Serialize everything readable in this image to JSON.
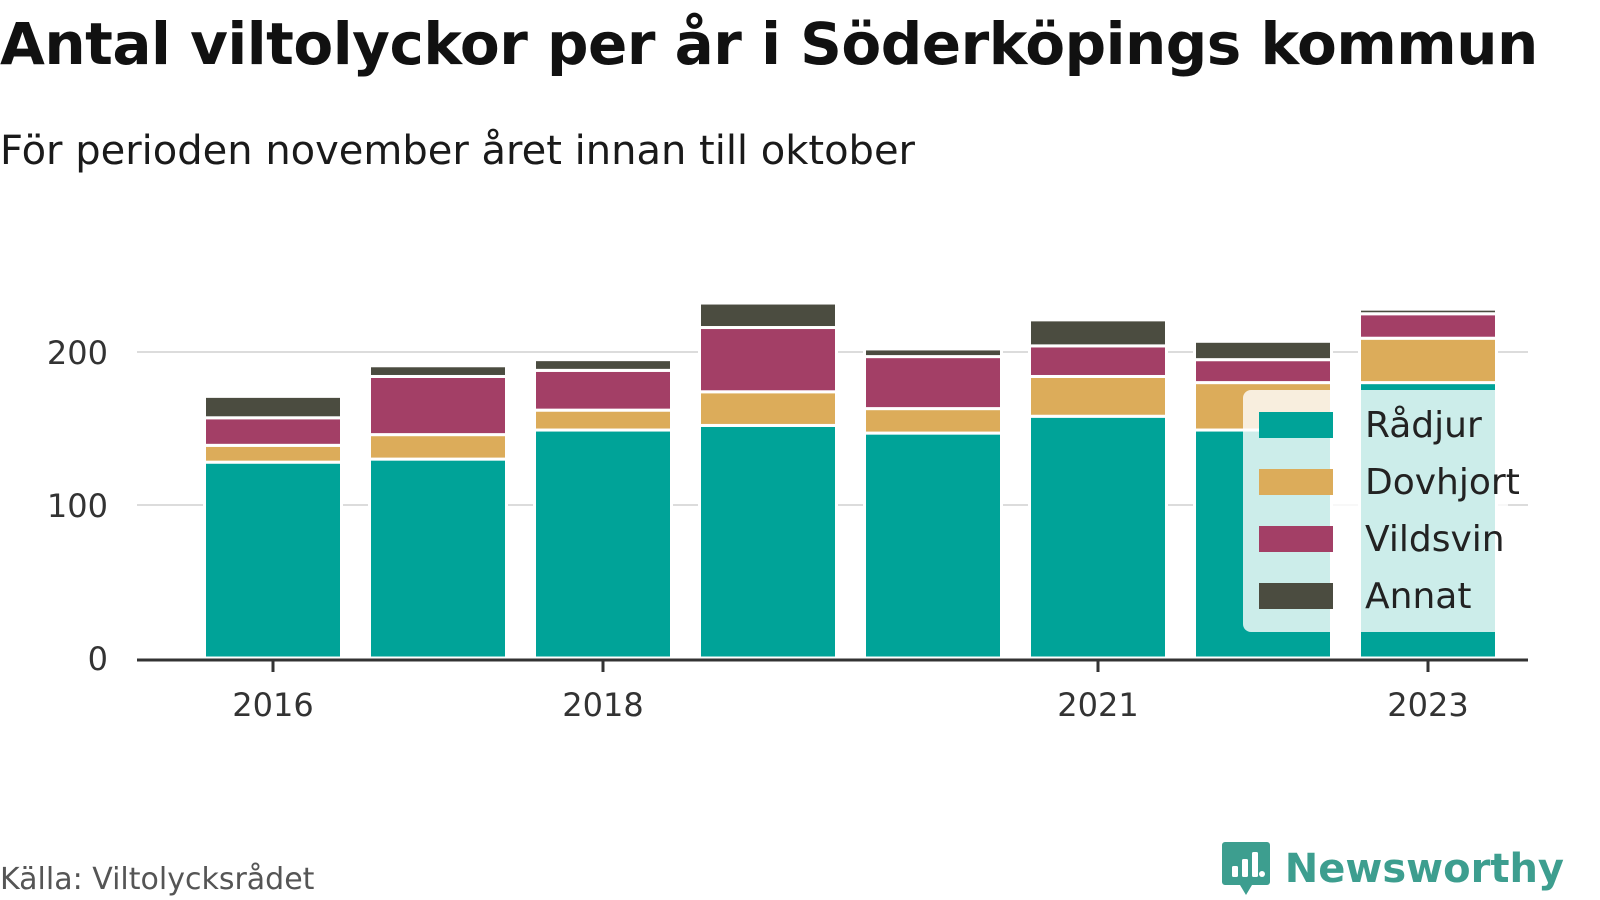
{
  "chart_data": {
    "type": "bar",
    "stacked": true,
    "title": "Antal viltolyckor per år i Söderköpings kommun",
    "subtitle": "För perioden november året innan till oktober",
    "categories": [
      "2016",
      "2017",
      "2018",
      "2019",
      "2020",
      "2021",
      "2022",
      "2023"
    ],
    "tick_labels": [
      "2016",
      "",
      "2018",
      "",
      "",
      "2021",
      "",
      "2023"
    ],
    "y_ticks": [
      "0",
      "100",
      "200"
    ],
    "ylim": [
      0,
      250
    ],
    "grid": true,
    "legend_position": "right",
    "series": [
      {
        "name": "Rådjur",
        "color": "#00a398",
        "values": [
          128,
          130,
          149,
          152,
          147,
          158,
          149,
          180
        ]
      },
      {
        "name": "Dovhjort",
        "color": "#dcac5a",
        "values": [
          11,
          16,
          13,
          22,
          16,
          26,
          31,
          29
        ]
      },
      {
        "name": "Vildsvin",
        "color": "#a33f66",
        "values": [
          18,
          38,
          26,
          42,
          34,
          20,
          15,
          16
        ]
      },
      {
        "name": "Annat",
        "color": "#4b4c40",
        "values": [
          14,
          7,
          7,
          16,
          5,
          17,
          12,
          3
        ]
      }
    ]
  },
  "footer": {
    "source": "Källa: Viltolycksrådet",
    "brand": "Newsworthy",
    "brand_color": "#3d9e8f"
  }
}
